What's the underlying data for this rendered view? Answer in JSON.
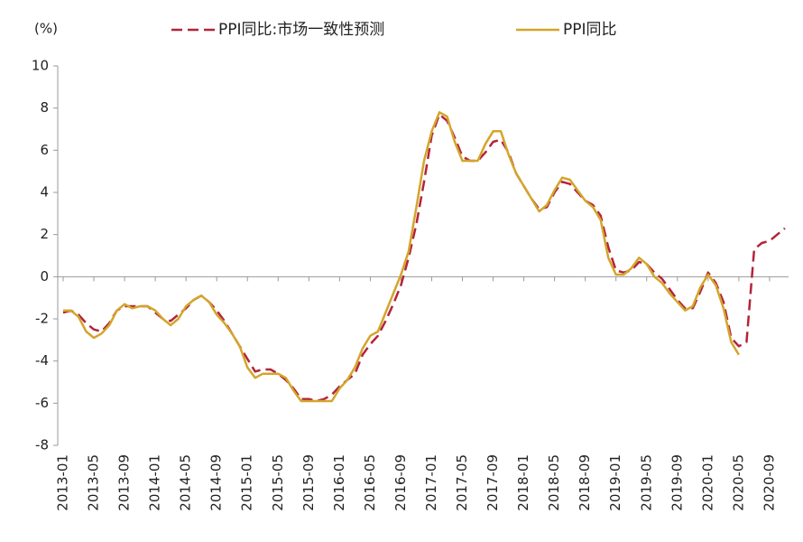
{
  "chart_data": {
    "type": "line",
    "y_unit_label": "(%)",
    "categories": [
      "2013-01",
      null,
      null,
      null,
      "2013-05",
      null,
      null,
      null,
      "2013-09",
      null,
      null,
      null,
      "2014-01",
      null,
      null,
      null,
      "2014-05",
      null,
      null,
      null,
      "2014-09",
      null,
      null,
      null,
      "2015-01",
      null,
      null,
      null,
      "2015-05",
      null,
      null,
      null,
      "2015-09",
      null,
      null,
      null,
      "2016-01",
      null,
      null,
      null,
      "2016-05",
      null,
      null,
      null,
      "2016-09",
      null,
      null,
      null,
      "2017-01",
      null,
      null,
      null,
      "2017-05",
      null,
      null,
      null,
      "2017-09",
      null,
      null,
      null,
      "2018-01",
      null,
      null,
      null,
      "2018-05",
      null,
      null,
      null,
      "2018-09",
      null,
      null,
      null,
      "2019-01",
      null,
      null,
      null,
      "2019-05",
      null,
      null,
      null,
      "2019-09",
      null,
      null,
      null,
      "2020-01",
      null,
      null,
      null,
      "2020-05",
      null,
      null,
      null,
      "2020-09",
      null,
      null
    ],
    "series": [
      {
        "name": "PPI同比:市场一致性预测",
        "color": "#b3243a",
        "dashed": true,
        "values": [
          -1.7,
          -1.6,
          -1.8,
          -2.2,
          -2.5,
          -2.6,
          -2.2,
          -1.6,
          -1.4,
          -1.4,
          -1.4,
          -1.4,
          -1.7,
          -2.0,
          -2.1,
          -1.8,
          -1.5,
          -1.1,
          -0.9,
          -1.2,
          -1.6,
          -2.1,
          -2.7,
          -3.3,
          -3.9,
          -4.5,
          -4.4,
          -4.4,
          -4.6,
          -4.9,
          -5.3,
          -5.8,
          -5.8,
          -5.9,
          -5.8,
          -5.6,
          -5.2,
          -4.9,
          -4.6,
          -3.7,
          -3.2,
          -2.8,
          -2.1,
          -1.3,
          -0.4,
          0.9,
          2.5,
          4.5,
          6.7,
          7.7,
          7.4,
          6.6,
          5.7,
          5.5,
          5.5,
          5.9,
          6.4,
          6.5,
          5.9,
          4.9,
          4.3,
          3.7,
          3.2,
          3.3,
          4.0,
          4.5,
          4.4,
          4.0,
          3.6,
          3.4,
          2.9,
          1.4,
          0.3,
          0.2,
          0.3,
          0.7,
          0.6,
          0.2,
          -0.1,
          -0.6,
          -1.1,
          -1.5,
          -1.5,
          -0.7,
          0.2,
          -0.3,
          -1.2,
          -2.9,
          -3.3,
          -3.1,
          1.3,
          1.6,
          1.7,
          2.0,
          2.3
        ]
      },
      {
        "name": "PPI同比",
        "color": "#d4a52b",
        "dashed": false,
        "values": [
          -1.6,
          -1.6,
          -1.9,
          -2.6,
          -2.9,
          -2.7,
          -2.3,
          -1.6,
          -1.3,
          -1.5,
          -1.4,
          -1.4,
          -1.6,
          -2.0,
          -2.3,
          -2.0,
          -1.4,
          -1.1,
          -0.9,
          -1.2,
          -1.8,
          -2.2,
          -2.7,
          -3.3,
          -4.3,
          -4.8,
          -4.6,
          -4.6,
          -4.6,
          -4.8,
          -5.4,
          -5.9,
          -5.9,
          -5.9,
          -5.9,
          -5.9,
          -5.3,
          -4.9,
          -4.3,
          -3.4,
          -2.8,
          -2.6,
          -1.7,
          -0.8,
          0.1,
          1.2,
          3.3,
          5.5,
          6.9,
          7.8,
          7.6,
          6.4,
          5.5,
          5.5,
          5.5,
          6.3,
          6.9,
          6.9,
          5.8,
          4.9,
          4.3,
          3.7,
          3.1,
          3.4,
          4.1,
          4.7,
          4.6,
          4.1,
          3.6,
          3.3,
          2.7,
          0.9,
          0.1,
          0.1,
          0.4,
          0.9,
          0.6,
          0.0,
          -0.3,
          -0.8,
          -1.2,
          -1.6,
          -1.4,
          -0.5,
          0.1,
          -0.4,
          -1.5,
          -3.1,
          -3.7,
          null,
          null,
          null,
          null,
          null,
          null
        ]
      }
    ],
    "ylim": [
      -8,
      10
    ],
    "yticks": [
      -8,
      -6,
      -4,
      -2,
      0,
      2,
      4,
      6,
      8,
      10
    ]
  }
}
